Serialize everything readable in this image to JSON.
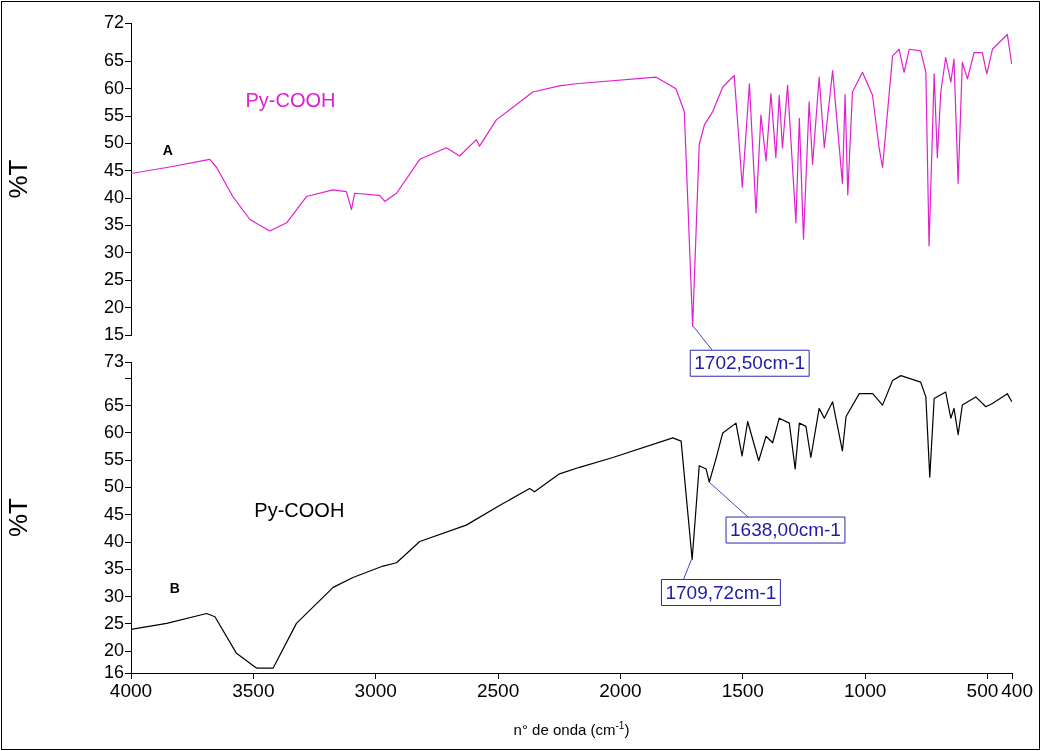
{
  "chart_data": [
    {
      "type": "line",
      "ylabel": "%T",
      "xlim": [
        4000,
        400
      ],
      "ylim": [
        15,
        72
      ],
      "yticks": [
        15,
        20,
        25,
        30,
        35,
        40,
        45,
        50,
        55,
        60,
        65,
        72
      ],
      "xticks": [
        4000,
        3500,
        3000,
        2500,
        2000,
        1500,
        1000,
        500,
        400
      ],
      "tick_labels": "y",
      "grid": false,
      "legend": false,
      "marker": "none",
      "line_style": "solid",
      "annotations": [
        "A",
        {
          "text": "1702,50cm-1",
          "x": 1702.5,
          "y": 16.6
        }
      ],
      "series": [
        {
          "name": "Py-COOH",
          "color": "#e020d0",
          "x": [
            4000,
            3854,
            3678,
            3650,
            3584,
            3514,
            3433,
            3364,
            3283,
            3175,
            3120,
            3099,
            3086,
            2984,
            2963,
            2915,
            2820,
            2711,
            2657,
            2589,
            2576,
            2507,
            2358,
            2249,
            2181,
            1854,
            1773,
            1739,
            1705,
            1678,
            1657,
            1623,
            1582,
            1535,
            1502,
            1473,
            1446,
            1426,
            1405,
            1385,
            1365,
            1351,
            1338,
            1317,
            1283,
            1269,
            1252,
            1229,
            1215,
            1188,
            1167,
            1133,
            1093,
            1082,
            1071,
            1052,
            1011,
            970,
            943,
            929,
            888,
            861,
            841,
            820,
            773,
            752,
            739,
            718,
            705,
            691,
            671,
            650,
            637,
            620,
            603,
            582,
            555,
            521,
            503,
            480,
            419,
            401
          ],
          "values": [
            44.5,
            45.6,
            47.1,
            45.6,
            40.3,
            36.1,
            34.0,
            35.5,
            40.3,
            41.5,
            41.2,
            37.9,
            40.9,
            40.5,
            39.4,
            40.9,
            47.1,
            49.2,
            47.7,
            50.7,
            49.5,
            54.3,
            59.4,
            60.5,
            60.9,
            62.1,
            60.0,
            55.8,
            16.6,
            49.8,
            53.4,
            55.8,
            60.3,
            62.4,
            42.0,
            60.9,
            37.3,
            55.2,
            46.8,
            59.1,
            47.4,
            58.8,
            49.2,
            60.6,
            35.5,
            54.6,
            32.5,
            57.6,
            46.2,
            62.1,
            49.2,
            63.3,
            42.7,
            58.9,
            40.6,
            59.4,
            63.0,
            58.8,
            49.2,
            45.6,
            66.0,
            67.2,
            63.0,
            67.2,
            66.9,
            63.0,
            31.3,
            62.7,
            47.4,
            59.4,
            65.7,
            61.2,
            65.4,
            42.7,
            64.8,
            61.8,
            66.6,
            66.6,
            62.7,
            67.2,
            69.9,
            64.5
          ]
        }
      ]
    },
    {
      "type": "line",
      "ylabel": "%T",
      "xlabel": "n° de onda (cm$^{-1}$)",
      "xlim": [
        4000,
        400
      ],
      "ylim": [
        16,
        73
      ],
      "yticks": [
        16,
        20,
        25,
        30,
        35,
        40,
        45,
        50,
        55,
        60,
        65,
        {
          "value": 70,
          "label": null
        },
        73
      ],
      "xticks": [
        4000,
        3500,
        3000,
        2500,
        2000,
        1500,
        1000,
        500,
        400
      ],
      "grid": false,
      "legend": false,
      "marker": "none",
      "line_style": "solid",
      "annotations": [
        "B",
        {
          "text": "1638,00cm-1",
          "x": 1638,
          "y": 51.0
        },
        {
          "text": "1709,72cm-1",
          "x": 1709.72,
          "y": 36.8
        }
      ],
      "series": [
        {
          "name": "Py-COOH",
          "color": "#000000",
          "x": [
            4000,
            3854,
            3691,
            3657,
            3569,
            3487,
            3419,
            3324,
            3174,
            3093,
            2970,
            2915,
            2820,
            2630,
            2494,
            2371,
            2351,
            2249,
            2167,
            2031,
            1786,
            1752,
            1707,
            1678,
            1650,
            1637,
            1610,
            1582,
            1528,
            1503,
            1480,
            1435,
            1405,
            1378,
            1351,
            1310,
            1286,
            1269,
            1242,
            1222,
            1188,
            1167,
            1133,
            1093,
            1078,
            1024,
            969,
            929,
            888,
            854,
            773,
            752,
            736,
            718,
            671,
            650,
            637,
            620,
            603,
            548,
            507,
            480,
            419,
            401
          ],
          "values": [
            24.0,
            25.1,
            26.9,
            26.3,
            19.6,
            16.9,
            16.9,
            25.1,
            31.7,
            33.5,
            35.6,
            36.2,
            40.1,
            43.1,
            46.7,
            49.8,
            49.2,
            52.5,
            53.7,
            55.5,
            59.1,
            58.5,
            36.8,
            54.0,
            53.4,
            51.0,
            55.2,
            60.0,
            61.8,
            55.8,
            62.1,
            54.9,
            59.4,
            58.2,
            62.7,
            61.8,
            53.4,
            61.8,
            61.2,
            55.5,
            64.5,
            62.7,
            65.7,
            56.7,
            63.0,
            67.2,
            67.2,
            65.1,
            69.6,
            70.5,
            69.3,
            66.6,
            51.9,
            66.3,
            67.5,
            62.7,
            64.5,
            59.7,
            65.1,
            66.6,
            64.8,
            65.4,
            67.2,
            65.7
          ]
        }
      ]
    }
  ]
}
